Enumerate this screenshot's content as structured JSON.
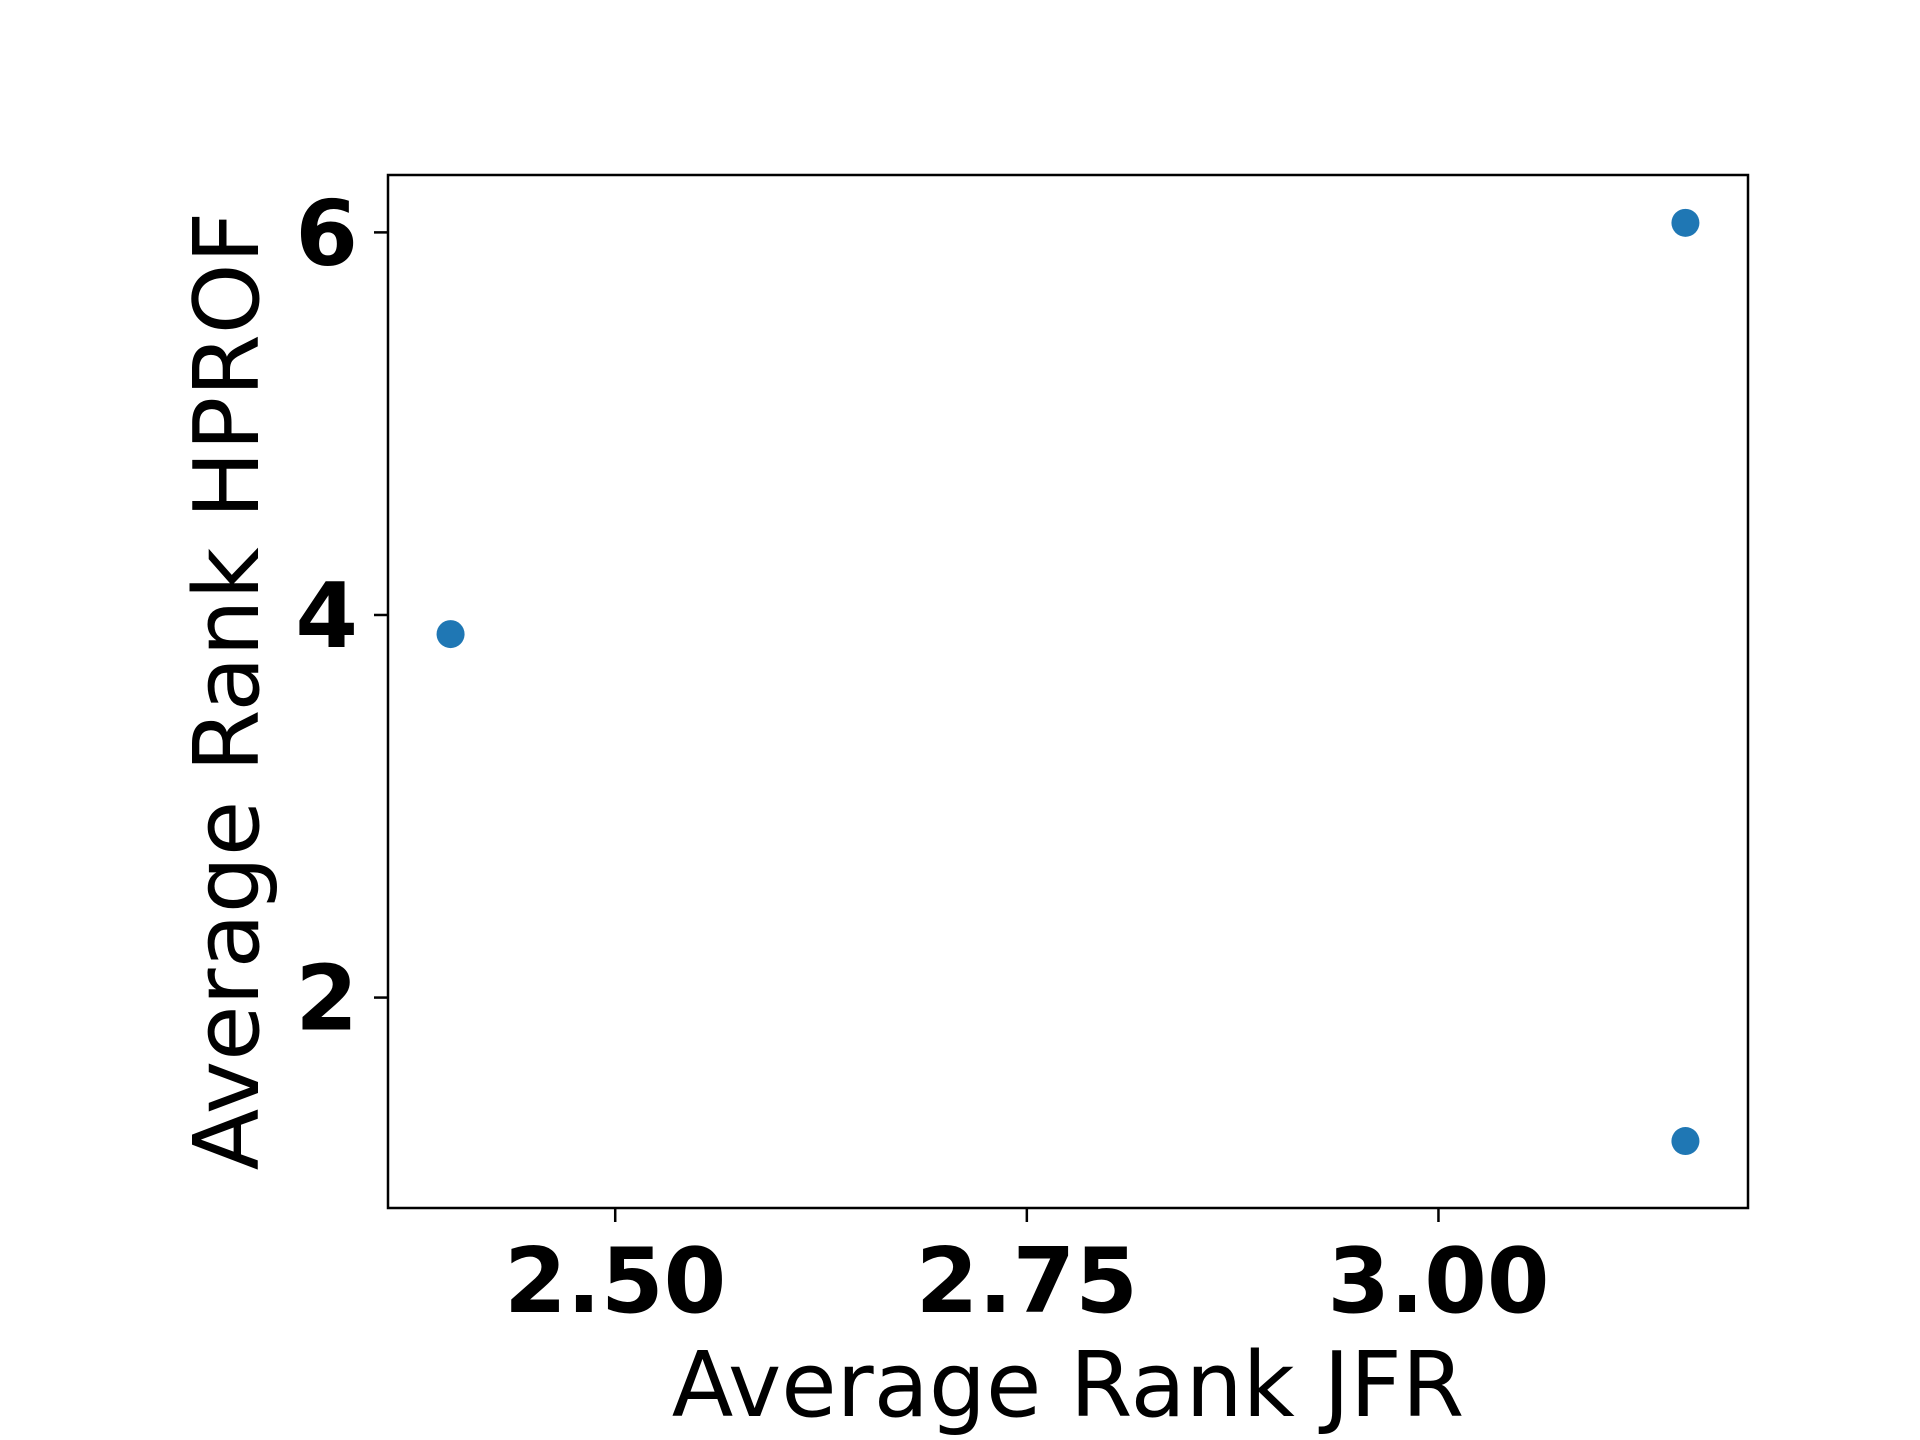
{
  "chart_data": {
    "type": "scatter",
    "title": "",
    "xlabel": "Average Rank JFR",
    "ylabel": "Average Rank HPROF",
    "x": [
      2.4,
      3.15,
      3.15
    ],
    "y": [
      3.9,
      6.05,
      1.25
    ],
    "xlim": [
      2.362,
      3.188
    ],
    "ylim": [
      0.9,
      6.3
    ],
    "xticks": [
      2.5,
      2.75,
      3.0
    ],
    "xtick_labels": [
      "2.50",
      "2.75",
      "3.00"
    ],
    "yticks": [
      2,
      4,
      6
    ],
    "ytick_labels": [
      "2",
      "4",
      "6"
    ],
    "grid": false,
    "marker_color": "#1f77b4"
  }
}
